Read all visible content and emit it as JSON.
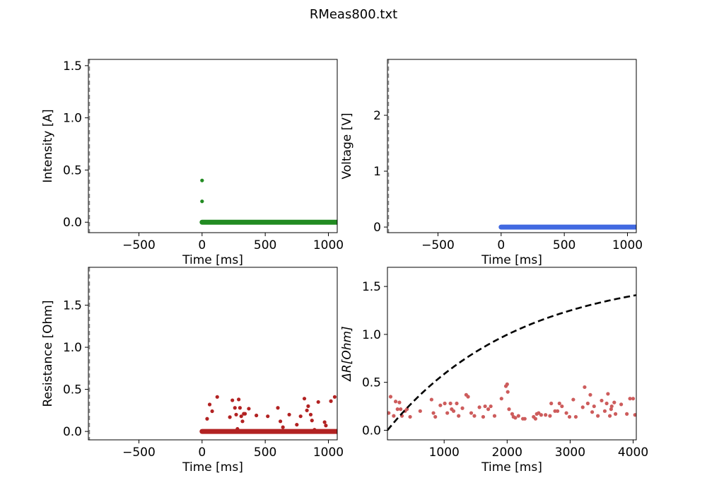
{
  "title": "RMeas800.txt",
  "chart_data": [
    {
      "type": "scatter",
      "xlabel": "Time [ms]",
      "ylabel": "Intensity [A]",
      "xlim": [
        -900,
        1070
      ],
      "ylim": [
        -0.1,
        1.56
      ],
      "xticks": [
        -500,
        0,
        500,
        1000
      ],
      "xtick_labels": [
        "−500",
        "0",
        "500",
        "1000"
      ],
      "yticks": [
        0.0,
        0.5,
        1.0,
        1.5
      ],
      "ytick_labels": [
        "0.0",
        "0.5",
        "1.0",
        "1.5"
      ],
      "grid": false,
      "series": [
        {
          "color": "#228b22",
          "points": [
            [
              0,
              0.4
            ],
            [
              0,
              0.2
            ]
          ],
          "dense_segments": [
            {
              "x": [
                0,
                1070
              ],
              "y": 0.0
            }
          ]
        }
      ]
    },
    {
      "type": "scatter",
      "xlabel": "Time [ms]",
      "ylabel": "Voltage [V]",
      "xlim": [
        -900,
        1070
      ],
      "ylim": [
        -0.1,
        3.0
      ],
      "xticks": [
        -500,
        0,
        500,
        1000
      ],
      "xtick_labels": [
        "−500",
        "0",
        "500",
        "1000"
      ],
      "yticks": [
        0,
        1,
        2
      ],
      "ytick_labels": [
        "0",
        "1",
        "2"
      ],
      "grid": false,
      "series": [
        {
          "color": "#4169e1",
          "points": [],
          "dense_segments": [
            {
              "x": [
                0,
                1070
              ],
              "y": 0.0
            }
          ]
        }
      ]
    },
    {
      "type": "scatter",
      "xlabel": "Time [ms]",
      "ylabel": "Resistance [Ohm]",
      "xlim": [
        -900,
        1070
      ],
      "ylim": [
        -0.1,
        1.95
      ],
      "xticks": [
        -500,
        0,
        500,
        1000
      ],
      "xtick_labels": [
        "−500",
        "0",
        "500",
        "1000"
      ],
      "yticks": [
        0.0,
        0.5,
        1.0,
        1.5
      ],
      "ytick_labels": [
        "0.0",
        "0.5",
        "1.0",
        "1.5"
      ],
      "grid": false,
      "series": [
        {
          "color": "#b22222",
          "points": [
            [
              40,
              0.15
            ],
            [
              60,
              0.32
            ],
            [
              80,
              0.24
            ],
            [
              120,
              0.41
            ],
            [
              220,
              0.17
            ],
            [
              240,
              0.37
            ],
            [
              260,
              0.28
            ],
            [
              270,
              0.2
            ],
            [
              280,
              0.03
            ],
            [
              290,
              0.38
            ],
            [
              300,
              0.28
            ],
            [
              310,
              0.18
            ],
            [
              320,
              0.12
            ],
            [
              330,
              0.21
            ],
            [
              340,
              0.21
            ],
            [
              370,
              0.27
            ],
            [
              430,
              0.19
            ],
            [
              520,
              0.18
            ],
            [
              600,
              0.28
            ],
            [
              620,
              0.12
            ],
            [
              640,
              0.05
            ],
            [
              690,
              0.2
            ],
            [
              750,
              0.08
            ],
            [
              780,
              0.18
            ],
            [
              810,
              0.39
            ],
            [
              830,
              0.25
            ],
            [
              840,
              0.3
            ],
            [
              860,
              0.2
            ],
            [
              870,
              0.13
            ],
            [
              890,
              0.02
            ],
            [
              920,
              0.35
            ],
            [
              970,
              0.11
            ],
            [
              980,
              0.07
            ],
            [
              1020,
              0.36
            ],
            [
              1050,
              0.41
            ]
          ],
          "dense_segments": [
            {
              "x": [
                0,
                1070
              ],
              "y": 0.0
            }
          ]
        }
      ]
    },
    {
      "type": "scatter",
      "xlabel": "Time [ms]",
      "ylabel": "ΔR[Ohm]",
      "xlim": [
        100,
        4050
      ],
      "ylim": [
        -0.1,
        1.7
      ],
      "xticks": [
        1000,
        2000,
        3000,
        4000
      ],
      "xtick_labels": [
        "1000",
        "2000",
        "3000",
        "4000"
      ],
      "yticks": [
        0.0,
        0.5,
        1.0,
        1.5
      ],
      "ytick_labels": [
        "0.0",
        "0.5",
        "1.0",
        "1.5"
      ],
      "grid": false,
      "series": [
        {
          "color": "#cd5c5c",
          "points": [
            [
              120,
              0.18
            ],
            [
              150,
              0.35
            ],
            [
              200,
              0.15
            ],
            [
              230,
              0.3
            ],
            [
              260,
              0.22
            ],
            [
              290,
              0.29
            ],
            [
              310,
              0.22
            ],
            [
              330,
              0.15
            ],
            [
              380,
              0.2
            ],
            [
              410,
              0.22
            ],
            [
              460,
              0.14
            ],
            [
              620,
              0.2
            ],
            [
              800,
              0.32
            ],
            [
              830,
              0.18
            ],
            [
              860,
              0.14
            ],
            [
              940,
              0.26
            ],
            [
              1010,
              0.28
            ],
            [
              1050,
              0.18
            ],
            [
              1100,
              0.28
            ],
            [
              1120,
              0.22
            ],
            [
              1150,
              0.2
            ],
            [
              1200,
              0.28
            ],
            [
              1230,
              0.15
            ],
            [
              1290,
              0.23
            ],
            [
              1350,
              0.37
            ],
            [
              1380,
              0.35
            ],
            [
              1430,
              0.18
            ],
            [
              1480,
              0.15
            ],
            [
              1560,
              0.24
            ],
            [
              1620,
              0.14
            ],
            [
              1650,
              0.25
            ],
            [
              1700,
              0.22
            ],
            [
              1740,
              0.25
            ],
            [
              1800,
              0.15
            ],
            [
              1910,
              0.33
            ],
            [
              1980,
              0.46
            ],
            [
              2000,
              0.48
            ],
            [
              2010,
              0.4
            ],
            [
              2030,
              0.22
            ],
            [
              2080,
              0.17
            ],
            [
              2100,
              0.14
            ],
            [
              2130,
              0.13
            ],
            [
              2180,
              0.15
            ],
            [
              2250,
              0.12
            ],
            [
              2280,
              0.12
            ],
            [
              2420,
              0.14
            ],
            [
              2450,
              0.12
            ],
            [
              2470,
              0.17
            ],
            [
              2500,
              0.18
            ],
            [
              2540,
              0.16
            ],
            [
              2610,
              0.16
            ],
            [
              2680,
              0.15
            ],
            [
              2700,
              0.28
            ],
            [
              2760,
              0.2
            ],
            [
              2800,
              0.2
            ],
            [
              2830,
              0.28
            ],
            [
              2870,
              0.25
            ],
            [
              2940,
              0.18
            ],
            [
              2990,
              0.14
            ],
            [
              3050,
              0.32
            ],
            [
              3090,
              0.14
            ],
            [
              3200,
              0.24
            ],
            [
              3230,
              0.45
            ],
            [
              3280,
              0.28
            ],
            [
              3320,
              0.37
            ],
            [
              3350,
              0.19
            ],
            [
              3380,
              0.25
            ],
            [
              3440,
              0.15
            ],
            [
              3500,
              0.31
            ],
            [
              3550,
              0.2
            ],
            [
              3580,
              0.28
            ],
            [
              3600,
              0.38
            ],
            [
              3630,
              0.15
            ],
            [
              3650,
              0.22
            ],
            [
              3660,
              0.25
            ],
            [
              3700,
              0.29
            ],
            [
              3720,
              0.17
            ],
            [
              3810,
              0.27
            ],
            [
              3900,
              0.17
            ],
            [
              3950,
              0.33
            ],
            [
              4000,
              0.33
            ],
            [
              4030,
              0.16
            ]
          ]
        },
        {
          "color": "#000000",
          "style": "dashed",
          "curve": "exp_rise",
          "amplitude": 1.65,
          "tau": 2050,
          "x0": 100,
          "y0": 0.0
        }
      ]
    }
  ]
}
